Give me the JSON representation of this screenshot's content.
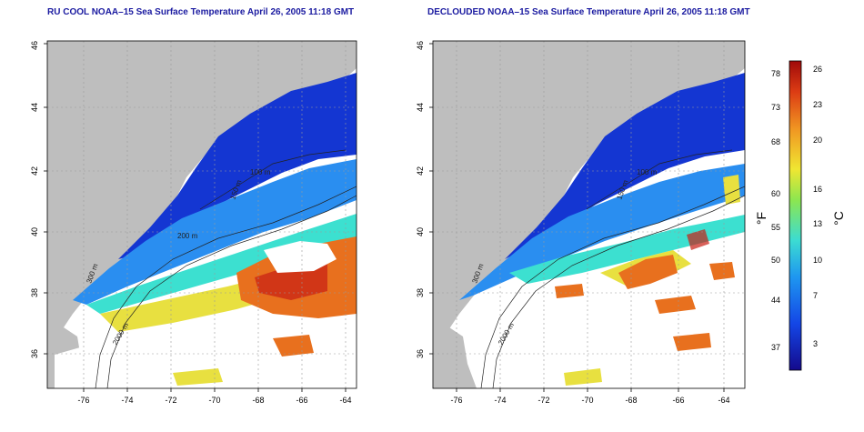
{
  "titles": {
    "left": "RU COOL NOAA–15 Sea Surface Temperature April 26, 2005 11:18 GMT",
    "right": "DECLOUDED NOAA–15 Sea Surface Temperature April 26, 2005 11:18 GMT"
  },
  "axes": {
    "lon_ticks": [
      "-76",
      "-74",
      "-72",
      "-70",
      "-68",
      "-66",
      "-64"
    ],
    "lat_ticks": [
      "36",
      "38",
      "40",
      "42",
      "44",
      "46"
    ]
  },
  "contours": {
    "depth_2000": "2000 m",
    "depth_200": "200 m",
    "depth_100": "100 m",
    "depth_150": "150 m",
    "depth_300": "300 m"
  },
  "colorbar": {
    "fahrenheit_label": "°F",
    "celsius_label": "°C",
    "fahrenheit_ticks": [
      "78",
      "73",
      "68",
      "60",
      "55",
      "50",
      "44",
      "37"
    ],
    "celsius_ticks": [
      "26",
      "23",
      "20",
      "16",
      "13",
      "10",
      "7",
      "3"
    ]
  },
  "colors": {
    "title": "#1a1aa0",
    "land": "#bebebe",
    "cold": "#1436d2",
    "cool": "#2a8ef0",
    "mid": "#3ce0d0",
    "warm": "#e8e040",
    "hot": "#e8701e",
    "hottest": "#c81e14"
  }
}
